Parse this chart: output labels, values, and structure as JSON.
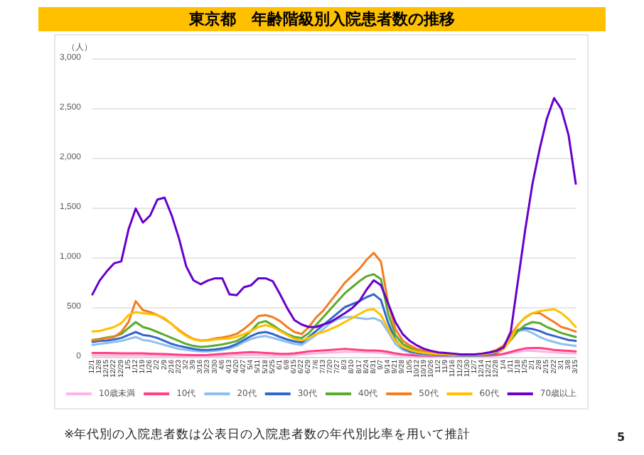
{
  "chart_data": {
    "type": "line",
    "title": "東京都　年齢階級別入院患者数の推移",
    "ylabel": "（人）",
    "annotations": [
      "※年代別の入院患者数は公表日の入院患者数の年代別比率を用いて推計",
      "5"
    ],
    "categories": [
      "12/1",
      "12/8",
      "12/15",
      "12/22",
      "12/29",
      "1/5",
      "1/12",
      "1/19",
      "1/26",
      "2/2",
      "2/9",
      "2/16",
      "2/23",
      "3/2",
      "3/9",
      "3/16",
      "3/23",
      "3/30",
      "4/6",
      "4/13",
      "4/20",
      "4/27",
      "5/4",
      "5/11",
      "5/18",
      "5/25",
      "6/1",
      "6/8",
      "6/15",
      "6/22",
      "6/29",
      "7/6",
      "7/13",
      "7/20",
      "7/27",
      "8/3",
      "8/10",
      "8/17",
      "8/24",
      "8/31",
      "9/7",
      "9/14",
      "9/21",
      "9/28",
      "10/5",
      "10/12",
      "10/19",
      "10/26",
      "11/2",
      "11/9",
      "11/16",
      "11/23",
      "11/30",
      "12/7",
      "12/14",
      "12/21",
      "12/28",
      "1/4",
      "1/11",
      "1/18",
      "1/25",
      "2/1",
      "2/8",
      "2/15",
      "2/22",
      "3/1",
      "3/8",
      "3/15"
    ],
    "series": [
      {
        "name": "10歳未満",
        "color": "#ffb3e6",
        "values": [
          15,
          15,
          15,
          15,
          15,
          15,
          15,
          15,
          15,
          15,
          12,
          12,
          10,
          10,
          10,
          10,
          10,
          10,
          12,
          15,
          18,
          20,
          22,
          20,
          18,
          15,
          15,
          15,
          18,
          25,
          30,
          35,
          40,
          45,
          45,
          50,
          50,
          50,
          45,
          45,
          40,
          30,
          20,
          15,
          12,
          10,
          8,
          8,
          8,
          8,
          8,
          8,
          8,
          8,
          10,
          12,
          15,
          25,
          40,
          50,
          60,
          60,
          55,
          50,
          45,
          40,
          38,
          35
        ]
      },
      {
        "name": "10代",
        "color": "#ff4081",
        "values": [
          40,
          40,
          40,
          38,
          35,
          35,
          35,
          35,
          32,
          30,
          28,
          25,
          22,
          20,
          18,
          18,
          20,
          25,
          30,
          35,
          40,
          45,
          48,
          45,
          40,
          35,
          30,
          30,
          35,
          45,
          55,
          60,
          65,
          70,
          75,
          80,
          75,
          70,
          65,
          65,
          60,
          50,
          35,
          25,
          20,
          15,
          12,
          10,
          10,
          10,
          10,
          10,
          10,
          10,
          12,
          15,
          20,
          30,
          50,
          70,
          85,
          90,
          90,
          80,
          70,
          65,
          60,
          55
        ]
      },
      {
        "name": "20代",
        "color": "#8fbfef",
        "values": [
          120,
          130,
          140,
          150,
          160,
          180,
          200,
          170,
          160,
          140,
          120,
          100,
          80,
          70,
          60,
          55,
          55,
          60,
          70,
          85,
          110,
          150,
          180,
          200,
          210,
          190,
          170,
          150,
          130,
          120,
          170,
          220,
          280,
          340,
          380,
          400,
          400,
          390,
          380,
          390,
          360,
          250,
          130,
          70,
          45,
          30,
          22,
          18,
          15,
          14,
          13,
          12,
          12,
          12,
          15,
          22,
          40,
          100,
          200,
          260,
          270,
          240,
          200,
          170,
          150,
          130,
          120,
          110
        ]
      },
      {
        "name": "30代",
        "color": "#3366cc",
        "values": [
          150,
          160,
          165,
          175,
          190,
          220,
          250,
          220,
          210,
          190,
          160,
          130,
          110,
          95,
          80,
          70,
          70,
          75,
          85,
          100,
          130,
          170,
          210,
          240,
          250,
          230,
          200,
          175,
          155,
          145,
          200,
          260,
          320,
          380,
          440,
          500,
          530,
          560,
          600,
          630,
          570,
          340,
          170,
          90,
          55,
          40,
          30,
          25,
          20,
          18,
          16,
          15,
          15,
          15,
          18,
          25,
          40,
          80,
          180,
          270,
          290,
          280,
          260,
          230,
          210,
          190,
          170,
          160
        ]
      },
      {
        "name": "40代",
        "color": "#5aab2b",
        "values": [
          170,
          180,
          195,
          205,
          230,
          290,
          350,
          300,
          280,
          250,
          220,
          190,
          160,
          130,
          110,
          100,
          105,
          115,
          125,
          140,
          160,
          200,
          260,
          340,
          360,
          320,
          270,
          230,
          200,
          190,
          240,
          320,
          400,
          480,
          560,
          640,
          700,
          760,
          810,
          830,
          780,
          430,
          220,
          130,
          90,
          65,
          45,
          35,
          28,
          25,
          22,
          20,
          20,
          20,
          25,
          35,
          55,
          90,
          170,
          260,
          320,
          350,
          340,
          300,
          270,
          240,
          220,
          200
        ]
      },
      {
        "name": "50代",
        "color": "#f47c20",
        "values": [
          170,
          175,
          190,
          200,
          250,
          350,
          560,
          470,
          450,
          420,
          380,
          330,
          270,
          220,
          180,
          165,
          170,
          185,
          195,
          210,
          230,
          280,
          340,
          410,
          420,
          400,
          360,
          300,
          250,
          230,
          300,
          395,
          465,
          560,
          650,
          745,
          815,
          885,
          975,
          1045,
          955,
          535,
          280,
          165,
          115,
          80,
          60,
          45,
          35,
          30,
          28,
          25,
          25,
          25,
          30,
          45,
          70,
          115,
          220,
          325,
          395,
          440,
          440,
          395,
          350,
          300,
          280,
          255
        ]
      },
      {
        "name": "60代",
        "color": "#ffc000",
        "values": [
          255,
          260,
          280,
          300,
          340,
          420,
          450,
          440,
          430,
          420,
          390,
          330,
          260,
          210,
          175,
          160,
          165,
          175,
          180,
          185,
          200,
          230,
          260,
          300,
          320,
          300,
          260,
          220,
          180,
          165,
          190,
          230,
          250,
          280,
          310,
          350,
          390,
          430,
          470,
          480,
          420,
          280,
          160,
          100,
          70,
          50,
          40,
          32,
          28,
          25,
          22,
          20,
          20,
          20,
          25,
          35,
          50,
          80,
          180,
          320,
          400,
          440,
          460,
          470,
          480,
          440,
          380,
          300
        ]
      },
      {
        "name": "70歳以上",
        "color": "#6600cc",
        "values": [
          628,
          767,
          860,
          940,
          960,
          1280,
          1490,
          1350,
          1420,
          1580,
          1600,
          1420,
          1190,
          910,
          770,
          730,
          767,
          790,
          790,
          628,
          620,
          700,
          720,
          790,
          790,
          760,
          630,
          490,
          370,
          325,
          300,
          300,
          325,
          350,
          395,
          440,
          490,
          560,
          675,
          770,
          720,
          535,
          350,
          230,
          160,
          115,
          80,
          60,
          45,
          40,
          33,
          25,
          25,
          25,
          33,
          45,
          60,
          95,
          255,
          770,
          1280,
          1740,
          2090,
          2395,
          2600,
          2490,
          2230,
          1740
        ]
      }
    ],
    "ylim": [
      0,
      3000
    ],
    "yticks": [
      {
        "value": 0,
        "label": "0"
      },
      {
        "value": 500,
        "label": "500"
      },
      {
        "value": 1000,
        "label": "1,000"
      },
      {
        "value": 1500,
        "label": "1,500"
      },
      {
        "value": 2000,
        "label": "2,000"
      },
      {
        "value": 2500,
        "label": "2,500"
      },
      {
        "value": 3000,
        "label": "3,000"
      }
    ],
    "grid": "y",
    "legend": "bottom",
    "marker": "none",
    "line_style": "solid"
  }
}
